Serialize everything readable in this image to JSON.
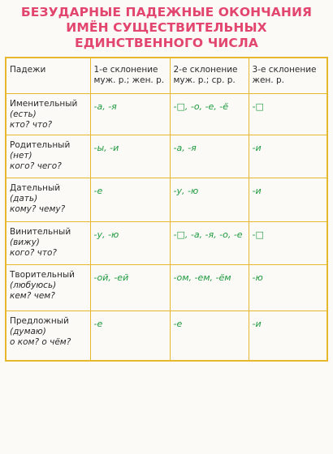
{
  "title": {
    "line1": "БЕЗУДАРНЫЕ ПАДЕЖНЫЕ ОКОНЧАНИЯ",
    "line2": "ИМЁН СУЩЕСТВИТЕЛЬНЫХ",
    "line3": "ЕДИНСТВЕННОГО ЧИСЛА"
  },
  "colors": {
    "title": "#e2466f",
    "table_border": "#e9b72c",
    "ending_text": "#1f9a3e"
  },
  "table": {
    "headers": [
      {
        "line1": "Падежи",
        "line2": ""
      },
      {
        "line1": "1-е склонение",
        "line2": "муж. р.; жен. р."
      },
      {
        "line1": "2-е склонение",
        "line2": "муж. р.; ср. р."
      },
      {
        "line1": "3-е склонение",
        "line2": "жен. р."
      }
    ],
    "rows": [
      {
        "case": "Именительный",
        "hint": "(есть)",
        "question": "кто? что?",
        "endings": [
          "-а, -я",
          "-□, -о, -е, -ё",
          "-□"
        ]
      },
      {
        "case": "Родительный",
        "hint": "(нет)",
        "question": "кого? чего?",
        "endings": [
          "-ы, -и",
          "-а, -я",
          "-и"
        ]
      },
      {
        "case": "Дательный",
        "hint": "(дать)",
        "question": "кому? чему?",
        "endings": [
          "-е",
          "-у, -ю",
          "-и"
        ]
      },
      {
        "case": "Винительный",
        "hint": "(вижу)",
        "question": "кого? что?",
        "endings": [
          "-у, -ю",
          "-□, -а, -я, -о, -е",
          "-□"
        ]
      },
      {
        "case": "Творительный",
        "hint": "(любуюсь)",
        "question": "кем? чем?",
        "endings": [
          "-ой, -ей",
          "-ом, -ем, -ём",
          "-ю"
        ]
      },
      {
        "case": "Предложный",
        "hint": "(думаю)",
        "question": "о ком? о чём?",
        "endings": [
          "-е",
          "-е",
          "-и"
        ]
      }
    ]
  }
}
